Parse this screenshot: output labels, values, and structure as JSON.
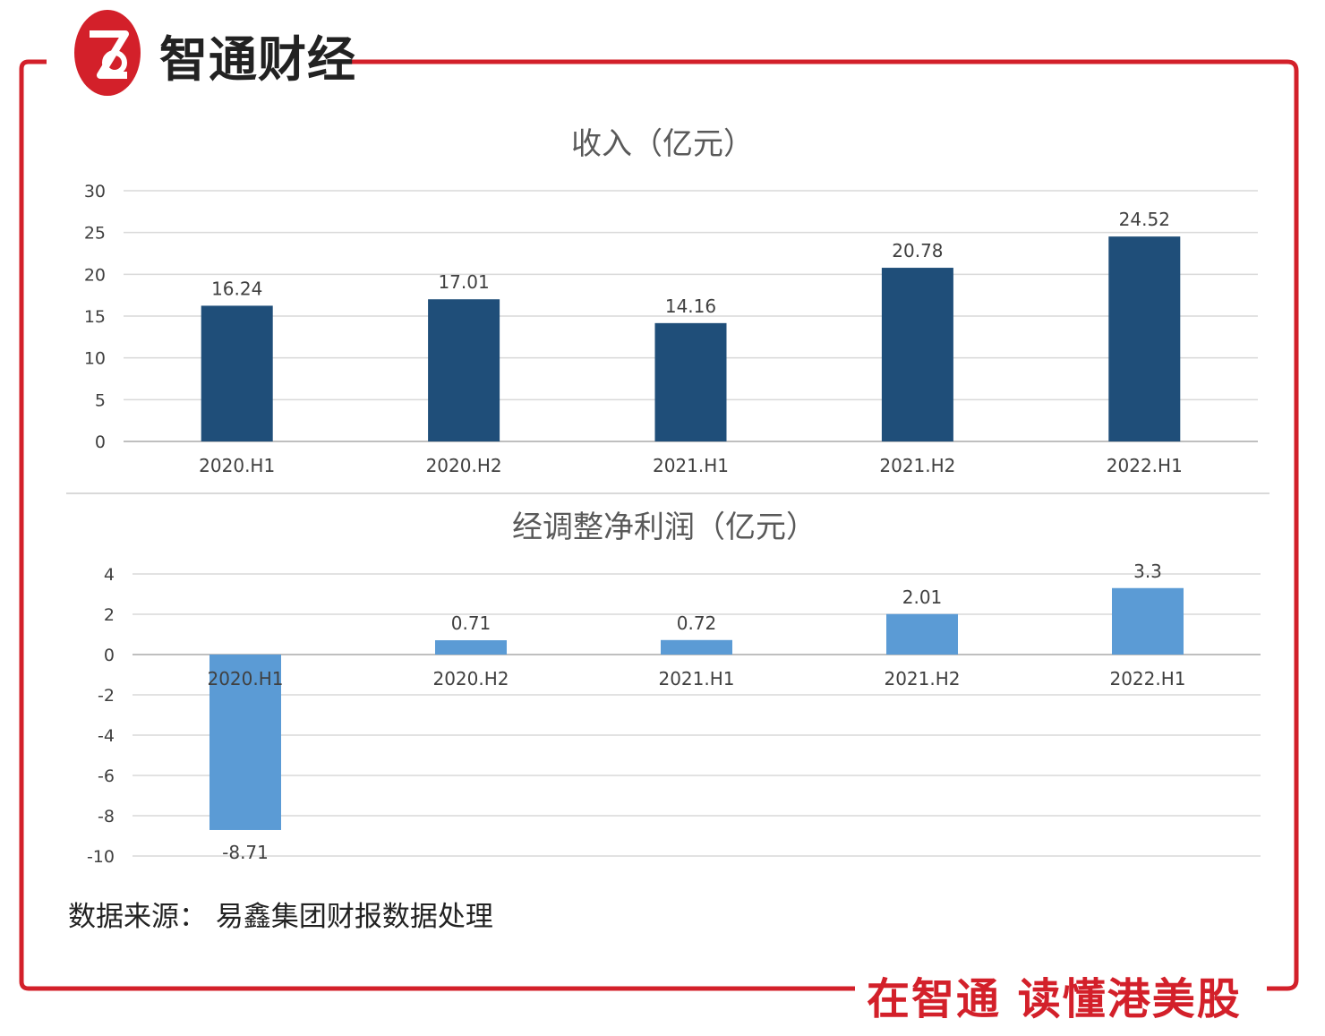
{
  "brand": {
    "name": "智通财经",
    "logo_icon": "zhitong-logo-icon",
    "color": "#d3202a"
  },
  "slogan": "在智通  读懂港美股",
  "source_note": "数据来源：  易鑫集团财报数据处理",
  "colors": {
    "frame": "#d3202a",
    "bar_dark": "#1f4e79",
    "bar_light": "#5b9bd5",
    "grid": "#d9d9d9"
  },
  "chart_data": [
    {
      "type": "bar",
      "title": "收入（亿元）",
      "categories": [
        "2020.H1",
        "2020.H2",
        "2021.H1",
        "2021.H2",
        "2022.H1"
      ],
      "values": [
        16.24,
        17.01,
        14.16,
        20.78,
        24.52
      ],
      "value_labels": [
        "16.24",
        "17.01",
        "14.16",
        "20.78",
        "24.52"
      ],
      "ylim": [
        0,
        30
      ],
      "yticks": [
        0,
        5,
        10,
        15,
        20,
        25,
        30
      ],
      "xlabel": "",
      "ylabel": "",
      "grid": true
    },
    {
      "type": "bar",
      "title": "经调整净利润（亿元）",
      "categories": [
        "2020.H1",
        "2020.H2",
        "2021.H1",
        "2021.H2",
        "2022.H1"
      ],
      "values": [
        -8.71,
        0.71,
        0.72,
        2.01,
        3.3
      ],
      "value_labels": [
        "-8.71",
        "0.71",
        "0.72",
        "2.01",
        "3.3"
      ],
      "ylim": [
        -10,
        4
      ],
      "yticks": [
        -10,
        -8,
        -6,
        -4,
        -2,
        0,
        2,
        4
      ],
      "xlabel": "",
      "ylabel": "",
      "grid": true
    }
  ]
}
